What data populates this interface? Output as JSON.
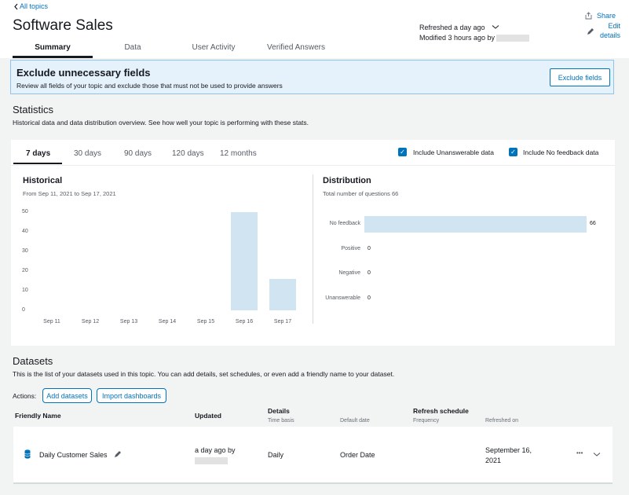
{
  "header": {
    "back_link": "All topics",
    "title": "Software Sales",
    "refreshed": "Refreshed a day ago",
    "modified": "Modified 3 hours ago by",
    "share": "Share",
    "edit_line1": "Edit",
    "edit_line2": "details"
  },
  "tabs": [
    "Summary",
    "Data",
    "User Activity",
    "Verified Answers"
  ],
  "banner": {
    "title": "Exclude unnecessary fields",
    "text": "Review all fields of your topic and exclude those that must not be used to provide answers",
    "button": "Exclude fields"
  },
  "statistics": {
    "title": "Statistics",
    "description": "Historical data and data distribution overview. See how well your topic is performing with these stats.",
    "ranges": [
      "7 days",
      "30 days",
      "90 days",
      "120 days",
      "12 months"
    ],
    "include_unanswerable": "Include Unanswerable data",
    "include_no_feedback": "Include No feedback data",
    "historical_title": "Historical",
    "historical_range": "From Sep 11, 2021 to Sep 17, 2021",
    "distribution_title": "Distribution",
    "distribution_total": "Total number of questions 66"
  },
  "chart_data": [
    {
      "type": "bar",
      "title": "Historical",
      "categories": [
        "Sep 11",
        "Sep 12",
        "Sep 13",
        "Sep 14",
        "Sep 15",
        "Sep 16",
        "Sep 17"
      ],
      "values": [
        0,
        0,
        0,
        0,
        0,
        50,
        16
      ],
      "yticks": [
        "50",
        "40",
        "30",
        "20",
        "10",
        "0"
      ],
      "ylim": [
        0,
        50
      ],
      "grid": false
    },
    {
      "type": "bar",
      "orientation": "horizontal",
      "title": "Distribution",
      "categories": [
        "No feedback",
        "Positive",
        "Negative",
        "Unanswerable"
      ],
      "values": [
        66,
        0,
        0,
        0
      ],
      "value_labels": [
        "66",
        "0",
        "0",
        "0"
      ]
    }
  ],
  "datasets": {
    "title": "Datasets",
    "description": "This is the list of your datasets used in this topic. You can add details, set schedules, or even add a friendly name to your dataset.",
    "actions_label": "Actions:",
    "add_button": "Add datasets",
    "import_button": "Import dashboards",
    "columns": {
      "friendly_name": "Friendly Name",
      "updated": "Updated",
      "details": "Details",
      "time_basis": "Time basis",
      "default_date": "Default date",
      "refresh_schedule": "Refresh schedule",
      "frequency": "Frequency",
      "refreshed_on": "Refreshed on"
    },
    "rows": [
      {
        "name": "Daily Customer Sales",
        "updated": "a day ago by",
        "time_basis": "Daily",
        "default_date": "Order Date",
        "refreshed_line1": "September 16,",
        "refreshed_line2": "2021",
        "more": "•••"
      }
    ]
  },
  "colors": {
    "accent": "#0073bb",
    "bar": "#d1e4f1",
    "banner_bg": "#e6f2fb"
  }
}
